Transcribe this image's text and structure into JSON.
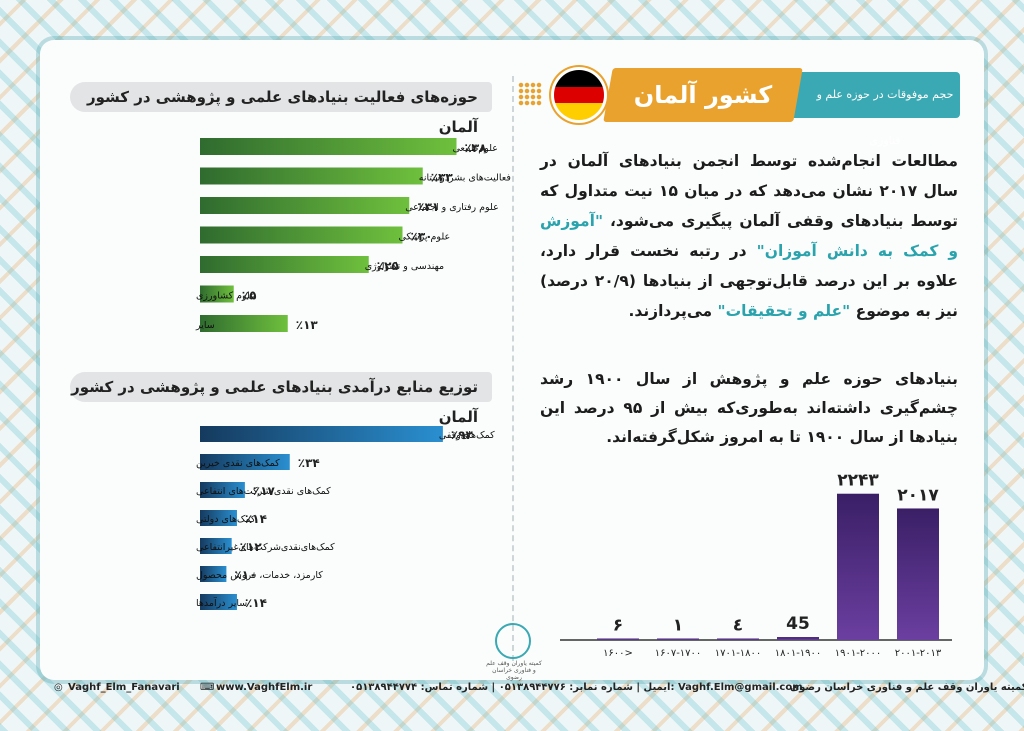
{
  "header": {
    "title": "کشور آلمان",
    "subtitle": "حجم موفوقات در حوزه علم و فناوری",
    "flag_colors": [
      "#000000",
      "#dd0000",
      "#ffce00"
    ]
  },
  "paragraphs": {
    "p1_a": "مطالعات انجام‌شده توسط انجمن بنیادهای آلمان در سال ۲۰۱۷ نشان می‌دهد که در میان ۱۵ نیت متداول که توسط بنیادهای وقفی آلمان پیگیری می‌شود، ",
    "p1_hl1": "\"آموزش و کمک به دانش آموزان\"",
    "p1_b": " در رتبه نخست قرار دارد، علاوه بر این درصد قابل‌توجهی از بنیادها (۲۰/۹ درصد) نیز به موضوع ",
    "p1_hl2": "\"علم و تحقیقات\"",
    "p1_c": " می‌پردازند.",
    "p2": "بنیادهای حوزه علم و پژوهش از سال ۱۹۰۰ رشد چشم‌گیری داشته‌اند به‌طوری‌که بیش از ۹۵ درصد این بنیادها از سال ۱۹۰۰ تا به امروز شکل‌گرفته‌اند."
  },
  "chart_data": [
    {
      "type": "bar",
      "orientation": "horizontal",
      "title": "حوزه‌های فعالیت بنیادهای علمی و پژوهشی در کشور آلمان",
      "categories": [
        "علوم‌طبیعی",
        "علوم مربوط به فعالیت‌های بشردوستانه",
        "علوم رفتاری و اجتماعی",
        "علوم پزشکی",
        "مهندسی و تکنولوژی",
        "علوم کشاورزی",
        "سایر"
      ],
      "values": [
        38,
        33,
        31,
        30,
        25,
        5,
        13
      ],
      "value_labels": [
        "٪۳۸",
        "٪۳۳",
        "٪۳۱",
        "٪۳۰",
        "٪۲۵",
        "٪۵",
        "٪۱۳"
      ],
      "xlim": [
        0,
        40
      ],
      "grid": false,
      "colors": {
        "high": "#6fc03d",
        "low": "#2f6b2f"
      }
    },
    {
      "type": "bar",
      "orientation": "horizontal",
      "title": "توزیع منابع درآمدی بنیادهای علمی و پژوهشی در کشور آلمان",
      "categories": [
        "کمک‌های‌وقفی",
        "کمک‌های نقدی خیرین",
        "کمک‌های نقدی شرکت‌های انتفاعی",
        "کمک‌های دولتی",
        "کمک‌های‌نقدی‌شرکت‌های‌غیرانتفاعی",
        "کارمزد، خدمات، فروش محصول",
        "سایر درآمدها"
      ],
      "values": [
        92,
        34,
        17,
        14,
        12,
        10,
        14
      ],
      "value_labels": [
        "٪۹۲",
        "٪۳۴",
        "٪۱۷",
        "٪۱۴",
        "٪۱۲",
        "٪۱۰",
        "٪۱۴"
      ],
      "xlim": [
        0,
        100
      ],
      "grid": false,
      "colors": {
        "high": "#2a8fd0",
        "low": "#153a5e"
      }
    },
    {
      "type": "bar",
      "orientation": "vertical",
      "categories": [
        "۲۰۰۱-۲۰۱۳",
        "۱۹۰۱-۲۰۰۰",
        "۱۸۰۱-۱۹۰۰",
        "۱۷۰۱-۱۸۰۰",
        "۱۶۰۷-۱۷۰۰",
        "۱۶۰۰>"
      ],
      "values": [
        2017,
        2243,
        45,
        4,
        1,
        6
      ],
      "value_labels": [
        "۲۰۱۷",
        "۲۲۴۳",
        "45",
        "٤",
        "۱",
        "۶"
      ],
      "ylim": [
        0,
        2300
      ],
      "grid": false,
      "colors": {
        "bar": "#6b3fa0",
        "bar_dark": "#3a1f66"
      }
    }
  ],
  "footer": {
    "instagram": "Vaghf_Elm_Fanavari",
    "website": "www.VaghfElm.ir",
    "email_line": "Vaghf.Elm@gmail.com :ایمیل | شماره نمابر: ۰۵۱۳۸۹۴۴۷۷۶ | شماره تماس: ۰۵۱۳۸۹۴۴۷۷۴",
    "org": "کمیته یاوران وقف علم و فناوری خراسان رضوی"
  },
  "logo_text": "کمیته یاوران وقف علم و فناوری خراسان رضوی"
}
